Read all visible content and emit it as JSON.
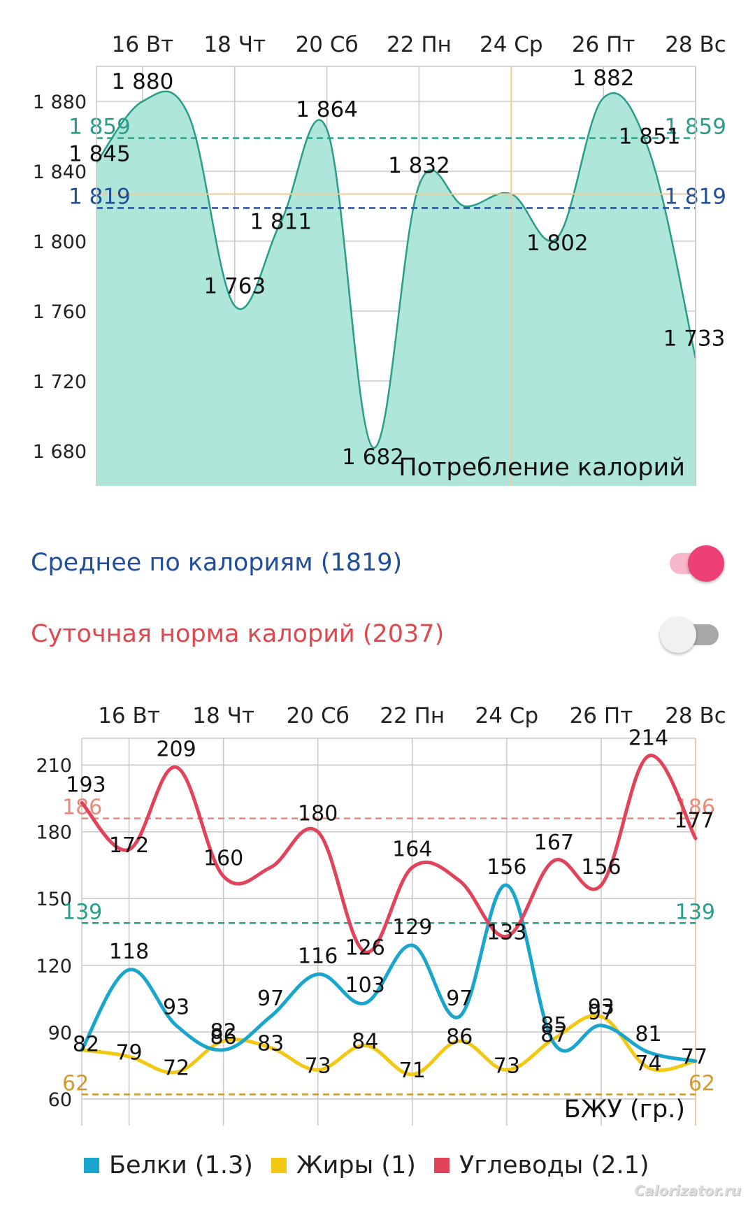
{
  "chart_data": [
    {
      "type": "area",
      "title": "Потребление калорий",
      "x_ticks": [
        "16 Вт",
        "18 Чт",
        "20 Сб",
        "22 Пн",
        "24 Ср",
        "26 Пт",
        "28 Вс"
      ],
      "y_ticks": [
        "1 680",
        "1 720",
        "1 760",
        "1 800",
        "1 840",
        "1 880"
      ],
      "ylim": [
        1660,
        1900
      ],
      "x": [
        "15",
        "16",
        "17",
        "18",
        "19",
        "20",
        "21",
        "22",
        "23",
        "24",
        "25",
        "26",
        "27",
        "28"
      ],
      "values": [
        1845,
        1880,
        1872,
        1763,
        1811,
        1864,
        1682,
        1832,
        1820,
        1827,
        1802,
        1882,
        1851,
        1733
      ],
      "point_labels": [
        "1 845",
        "1 880",
        "",
        "1 763",
        "1 811",
        "1 864",
        "1 682",
        "1 832",
        "",
        "",
        "1 802",
        "1 882",
        "1 851",
        "1 733"
      ],
      "series_color": "#2a9d8a",
      "fill_color": "#aee6d9",
      "reference_lines": [
        {
          "value": 1859,
          "label": "1 859",
          "color": "#2a9d8a"
        },
        {
          "value": 1819,
          "label": "1 819",
          "color": "#1f4e9c"
        }
      ],
      "highlight_x": "24",
      "highlight_y": 1827,
      "highlight_color": "#f2c99a",
      "grid": true
    },
    {
      "type": "line",
      "title": "БЖУ (гр.)",
      "x_ticks": [
        "16 Вт",
        "18 Чт",
        "20 Сб",
        "22 Пн",
        "24 Ср",
        "26 Пт",
        "28 Вс"
      ],
      "y_ticks": [
        "60",
        "90",
        "120",
        "150",
        "180",
        "210"
      ],
      "ylim": [
        48,
        222
      ],
      "x": [
        "15",
        "16",
        "17",
        "18",
        "19",
        "20",
        "21",
        "22",
        "23",
        "24",
        "25",
        "26",
        "27",
        "28"
      ],
      "series": [
        {
          "name": "Белки (1.3)",
          "color": "#1aa5cc",
          "values": [
            82,
            118,
            93,
            82,
            97,
            116,
            103,
            129,
            97,
            156,
            85,
            93,
            81,
            77
          ],
          "labels": [
            "82",
            "118",
            "93",
            "82",
            "97",
            "116",
            "103",
            "129",
            "97",
            "156",
            "85",
            "93",
            "81",
            ""
          ]
        },
        {
          "name": "Жиры (1)",
          "color": "#f2c813",
          "values": [
            82,
            79,
            72,
            86,
            83,
            73,
            84,
            71,
            86,
            73,
            87,
            97,
            74,
            77
          ],
          "labels": [
            "",
            "79",
            "72",
            "86",
            "83",
            "73",
            "84",
            "71",
            "86",
            "73",
            "87",
            "97",
            "74",
            "77"
          ]
        },
        {
          "name": "Углеводы (2.1)",
          "color": "#e0435a",
          "values": [
            193,
            172,
            209,
            160,
            164,
            180,
            126,
            164,
            158,
            133,
            167,
            156,
            214,
            177
          ],
          "labels": [
            "193",
            "172",
            "209",
            "160",
            "",
            "180",
            "126",
            "164",
            "",
            "133",
            "167",
            "156",
            "214",
            "177"
          ]
        }
      ],
      "reference_lines": [
        {
          "value": 186,
          "label": "186",
          "color": "#e88a7a"
        },
        {
          "value": 139,
          "label": "139",
          "color": "#2a9d8a"
        },
        {
          "value": 62,
          "label": "62",
          "color": "#d49a2a"
        }
      ],
      "grid": true
    }
  ],
  "toggles": {
    "average": {
      "label": "Среднее по калориям (1819)",
      "color": "#1f4e9c",
      "on": true
    },
    "norm": {
      "label": "Суточная норма калорий (2037)",
      "color": "#e04850",
      "on": false
    }
  },
  "legend": [
    {
      "label": "Белки (1.3)",
      "color": "#1aa5cc"
    },
    {
      "label": "Жиры (1)",
      "color": "#f2c813"
    },
    {
      "label": "Углеводы (2.1)",
      "color": "#e0435a"
    }
  ],
  "watermark": "Calorizator.ru"
}
